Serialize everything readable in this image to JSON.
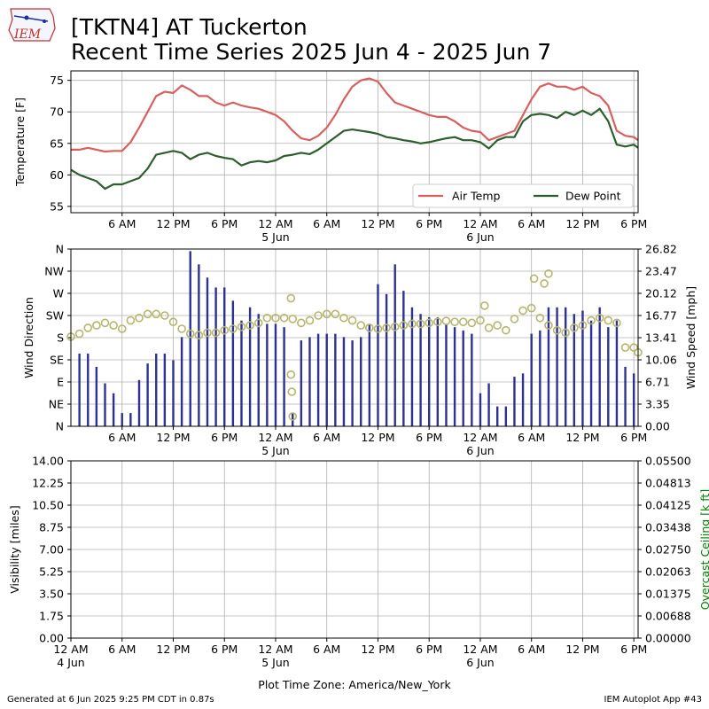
{
  "header": {
    "logo_text": "IEM",
    "title_line1": "[TKTN4] AT Tuckerton",
    "title_line2": "Recent Time Series 2025 Jun 4 - 2025 Jun 7"
  },
  "footer": {
    "left": "Generated at 6 Jun 2025 9:25 PM CDT in 0.87s",
    "right": "IEM Autoplot App #43"
  },
  "colors": {
    "air_temp": "#d95f5f",
    "dew_point": "#2d5e2d",
    "wind_speed_bar": "#2e3192",
    "wind_dir_marker": "#b5b56e",
    "ceiling_label": "#008000",
    "grid": "#b0b0b0"
  },
  "chart_data": [
    {
      "type": "line",
      "panel": "temperature",
      "ylabel": "Temperature [F]",
      "ylim": [
        54,
        76.5
      ],
      "yticks": [
        55,
        60,
        65,
        70,
        75
      ],
      "xlim_hours": [
        0,
        66.5
      ],
      "xtick_hours": [
        6,
        12,
        18,
        24,
        30,
        36,
        42,
        48,
        54,
        60,
        66
      ],
      "xtick_labels": [
        "6 AM",
        "12 PM",
        "6 PM",
        "12 AM",
        "6 AM",
        "12 PM",
        "6 PM",
        "12 AM",
        "6 AM",
        "12 PM",
        "6 PM"
      ],
      "date_labels": [
        {
          "hour": 24,
          "label": "5 Jun"
        },
        {
          "hour": 48,
          "label": "6 Jun"
        }
      ],
      "grid": true,
      "legend": {
        "placement": "lower-right",
        "entries": [
          "Air Temp",
          "Dew Point"
        ]
      },
      "series": [
        {
          "name": "Air Temp",
          "x": [
            0,
            1,
            2,
            3,
            4,
            5,
            6,
            7,
            8,
            9,
            10,
            11,
            12,
            13,
            14,
            15,
            16,
            17,
            18,
            19,
            20,
            21,
            22,
            23,
            24,
            25,
            26,
            27,
            28,
            29,
            30,
            31,
            32,
            33,
            34,
            35,
            36,
            37,
            38,
            39,
            40,
            41,
            42,
            43,
            44,
            45,
            46,
            47,
            48,
            49,
            50,
            51,
            52,
            53,
            54,
            55,
            56,
            57,
            58,
            59,
            60,
            61,
            62,
            63,
            64,
            65,
            66,
            66.5
          ],
          "y": [
            64,
            64,
            64.3,
            64,
            63.7,
            63.8,
            63.8,
            65.2,
            67.5,
            70,
            72.5,
            73.2,
            73,
            74.2,
            73.5,
            72.5,
            72.5,
            71.5,
            71,
            71.5,
            71,
            70.7,
            70.5,
            70,
            69.5,
            68.5,
            67,
            65.8,
            65.5,
            66.2,
            67.5,
            69.5,
            72,
            74,
            75,
            75.3,
            74.8,
            73,
            71.5,
            71,
            70.5,
            70,
            69.5,
            69.2,
            69.2,
            68.5,
            67.5,
            67,
            66.8,
            65.5,
            66,
            66.5,
            67,
            69.5,
            72,
            74,
            74.5,
            74,
            74,
            73.5,
            74,
            73,
            72.5,
            71,
            67,
            66.2,
            66,
            65.5
          ]
        },
        {
          "name": "Dew Point",
          "x": [
            0,
            1,
            2,
            3,
            4,
            5,
            6,
            7,
            8,
            9,
            10,
            11,
            12,
            13,
            14,
            15,
            16,
            17,
            18,
            19,
            20,
            21,
            22,
            23,
            24,
            25,
            26,
            27,
            28,
            29,
            30,
            31,
            32,
            33,
            34,
            35,
            36,
            37,
            38,
            39,
            40,
            41,
            42,
            43,
            44,
            45,
            46,
            47,
            48,
            49,
            50,
            51,
            52,
            53,
            54,
            55,
            56,
            57,
            58,
            59,
            60,
            61,
            62,
            63,
            64,
            65,
            66,
            66.5
          ],
          "y": [
            60.8,
            60,
            59.5,
            59,
            57.8,
            58.5,
            58.5,
            59,
            59.5,
            61,
            63.2,
            63.5,
            63.8,
            63.5,
            62.5,
            63.2,
            63.5,
            63,
            62.7,
            62.5,
            61.5,
            62,
            62.2,
            62,
            62.3,
            63,
            63.2,
            63.5,
            63.3,
            64,
            65,
            66,
            67,
            67.2,
            67,
            66.8,
            66.5,
            66,
            65.8,
            65.5,
            65.3,
            65,
            65.2,
            65.5,
            65.8,
            66,
            65.5,
            65.5,
            65.2,
            64.2,
            65.5,
            66,
            66,
            68.5,
            69.5,
            69.7,
            69.5,
            69,
            70,
            69.5,
            70.2,
            69.5,
            70.5,
            68.5,
            64.8,
            64.5,
            64.8,
            64.3
          ]
        }
      ]
    },
    {
      "type": "bar",
      "panel": "wind",
      "ylabel_left": "Wind Direction",
      "ylabel_right": "Wind Speed [mph]",
      "dir_ticks": [
        "N",
        "NE",
        "E",
        "SE",
        "S",
        "SW",
        "W",
        "NW",
        "N"
      ],
      "speed_ticks": [
        "0.00",
        "3.35",
        "6.71",
        "10.06",
        "13.41",
        "16.77",
        "20.12",
        "23.47",
        "26.82"
      ],
      "speed_ylim": [
        0,
        26.82
      ],
      "dir_ylim": [
        0,
        360
      ],
      "xtick_labels": [
        "6 AM",
        "12 PM",
        "6 PM",
        "12 AM",
        "6 AM",
        "12 PM",
        "6 PM",
        "12 AM",
        "6 AM",
        "12 PM",
        "6 PM"
      ],
      "date_labels": [
        {
          "hour": 24,
          "label": "5 Jun"
        },
        {
          "hour": 48,
          "label": "6 Jun"
        }
      ],
      "grid": true,
      "series": [
        {
          "name": "Wind Speed",
          "x": [
            1,
            2,
            3,
            4,
            5,
            6,
            7,
            8,
            9,
            10,
            11,
            12,
            13,
            14,
            15,
            16,
            17,
            18,
            19,
            20,
            21,
            22,
            23,
            24,
            25,
            26,
            27,
            28,
            29,
            30,
            31,
            32,
            33,
            34,
            35,
            36,
            37,
            38,
            39,
            40,
            41,
            42,
            43,
            44,
            45,
            46,
            47,
            48,
            49,
            50,
            51,
            52,
            53,
            54,
            55,
            56,
            57,
            58,
            59,
            60,
            61,
            62,
            63,
            64,
            65,
            66
          ],
          "values": [
            11,
            11,
            9,
            6.5,
            5,
            2,
            2,
            7,
            9.5,
            11,
            11,
            10,
            13.5,
            26.5,
            24.5,
            22.5,
            21,
            21,
            19,
            16,
            18,
            17,
            15.5,
            15.5,
            15,
            2,
            13,
            13.5,
            14,
            14,
            14,
            13.5,
            13,
            13.5,
            15.5,
            21.5,
            20,
            24.5,
            20.5,
            18,
            17,
            16.5,
            16.5,
            15.5,
            15,
            14.5,
            14,
            5,
            6.5,
            3,
            3,
            7.5,
            8,
            14,
            14.5,
            18,
            18,
            18,
            17,
            17.5,
            16,
            18,
            15,
            16,
            9,
            8
          ]
        },
        {
          "name": "Wind Direction",
          "x": [
            0,
            1,
            2,
            3,
            4,
            5,
            6,
            7,
            8,
            9,
            10,
            11,
            12,
            13,
            14,
            15,
            16,
            17,
            18,
            19,
            20,
            21,
            22,
            23,
            24,
            25,
            26,
            27,
            28,
            29,
            30,
            31,
            32,
            33,
            34,
            35,
            36,
            37,
            38,
            39,
            40,
            41,
            42,
            43,
            44,
            45,
            46,
            47,
            48,
            49,
            50,
            51,
            52,
            53,
            54,
            55,
            56,
            57,
            58,
            59,
            60,
            61,
            62,
            63,
            64,
            65,
            66,
            66.5
          ],
          "values": [
            182,
            188,
            200,
            205,
            210,
            205,
            198,
            215,
            220,
            228,
            228,
            225,
            212,
            198,
            188,
            185,
            190,
            190,
            195,
            198,
            202,
            205,
            210,
            220,
            220,
            220,
            218,
            210,
            215,
            225,
            228,
            228,
            220,
            215,
            205,
            200,
            198,
            200,
            202,
            205,
            208,
            208,
            210,
            212,
            214,
            212,
            212,
            210,
            215,
            200,
            205,
            195,
            218,
            235,
            240,
            220,
            205,
            195,
            190,
            200,
            205,
            215,
            220,
            215,
            210,
            160,
            160,
            150
          ],
          "outliers": [
            {
              "x": 25.8,
              "y": 260
            },
            {
              "x": 25.8,
              "y": 105
            },
            {
              "x": 25.9,
              "y": 70
            },
            {
              "x": 26,
              "y": 20
            },
            {
              "x": 48.5,
              "y": 245
            },
            {
              "x": 54.3,
              "y": 300
            },
            {
              "x": 55.5,
              "y": 290
            },
            {
              "x": 56,
              "y": 310
            }
          ]
        }
      ]
    },
    {
      "type": "line",
      "panel": "visibility",
      "ylabel_left": "Visibility [miles]",
      "ylabel_right": "Overcast Ceiling [k ft]",
      "vis_ticks": [
        "0.00",
        "1.75",
        "3.50",
        "5.25",
        "7.00",
        "8.75",
        "10.50",
        "12.25",
        "14.00"
      ],
      "vis_ylim": [
        0,
        14
      ],
      "ceil_ticks": [
        "0.00000",
        "0.00688",
        "0.01375",
        "0.02063",
        "0.02750",
        "0.03438",
        "0.04125",
        "0.04813",
        "0.05500"
      ],
      "ceil_ylim": [
        0,
        0.055
      ],
      "xtick_labels": [
        "12 AM",
        "6 AM",
        "12 PM",
        "6 PM",
        "12 AM",
        "6 AM",
        "12 PM",
        "6 PM",
        "12 AM",
        "6 AM",
        "12 PM",
        "6 PM"
      ],
      "date_labels": [
        {
          "hour": 0,
          "label": "4 Jun"
        },
        {
          "hour": 24,
          "label": "5 Jun"
        },
        {
          "hour": 48,
          "label": "6 Jun"
        }
      ],
      "xlabel": "Plot Time Zone: America/New_York",
      "grid": true,
      "series": []
    }
  ]
}
